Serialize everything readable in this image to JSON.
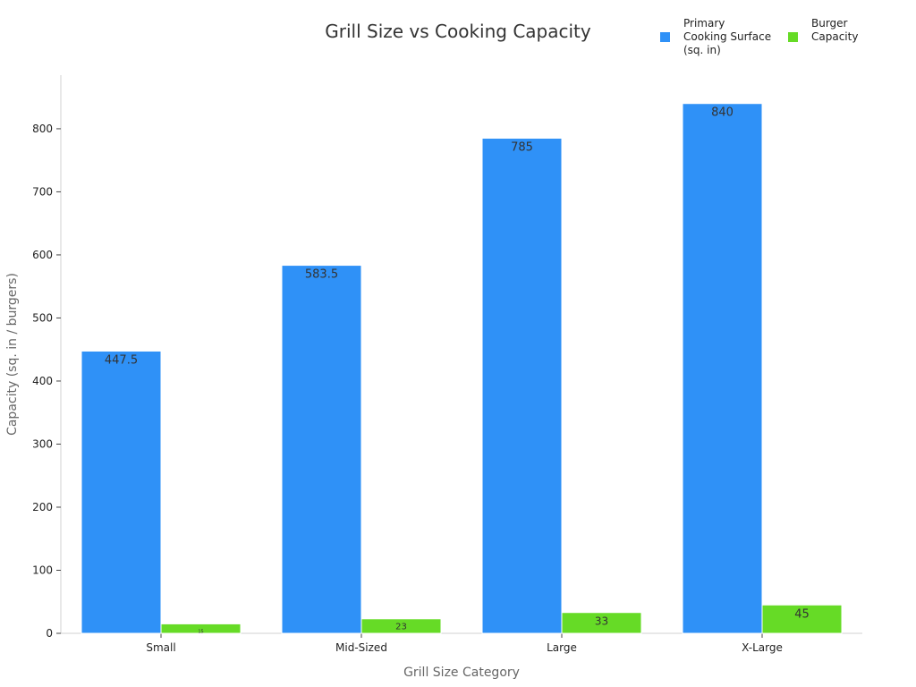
{
  "chart_data": {
    "type": "bar",
    "title": "Grill Size vs Cooking Capacity",
    "xlabel": "Grill Size Category",
    "ylabel": "Capacity (sq. in / burgers)",
    "categories": [
      "Small",
      "Mid-Sized",
      "Large",
      "X-Large"
    ],
    "ylim": [
      0,
      885
    ],
    "yticks": [
      0,
      100,
      200,
      300,
      400,
      500,
      600,
      700,
      800
    ],
    "grid": false,
    "legend_position": "top-right",
    "series": [
      {
        "name": "Primary Cooking Surface (sq. in)",
        "legend_lines": [
          "Primary",
          "Cooking Surface",
          "(sq. in)"
        ],
        "color": "#2f91f7",
        "values": [
          447.5,
          583.5,
          785,
          840
        ],
        "labels": [
          "447.5",
          "583.5",
          "785",
          "840"
        ]
      },
      {
        "name": "Burger Capacity",
        "legend_lines": [
          "Burger",
          "Capacity"
        ],
        "color": "#66db26",
        "values": [
          15,
          23,
          33,
          45
        ],
        "labels": [
          "15",
          "23",
          "33",
          "45"
        ]
      }
    ]
  }
}
